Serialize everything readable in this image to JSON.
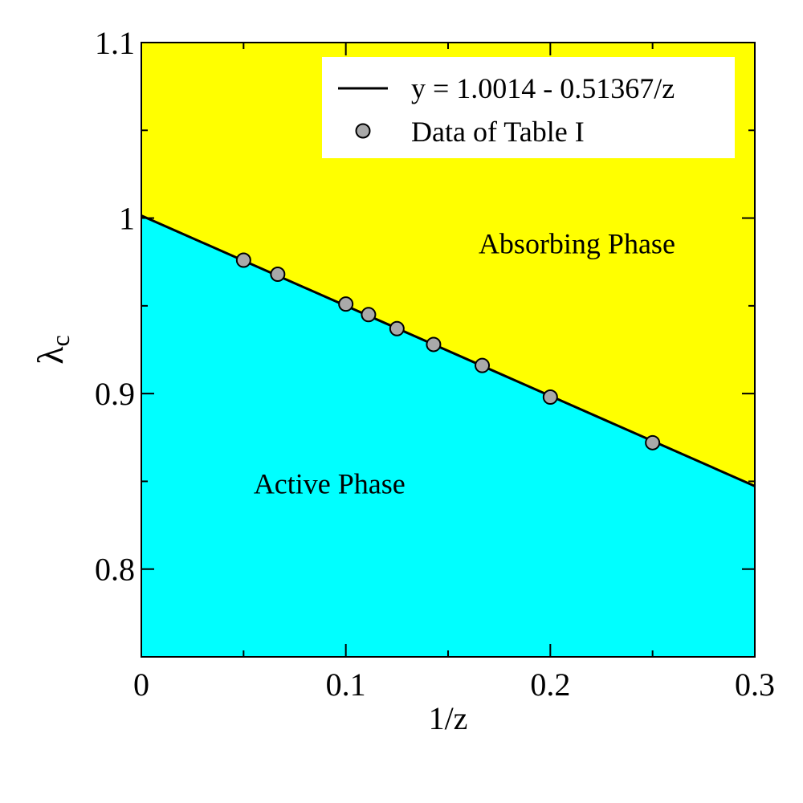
{
  "chart_data": {
    "type": "line",
    "xlabel": "1/z",
    "ylabel": "λ",
    "ylabel_subscript": "c",
    "xlim": [
      0,
      0.3
    ],
    "ylim": [
      0.75,
      1.1
    ],
    "x_ticks": [
      {
        "value": 0,
        "label": "0"
      },
      {
        "value": 0.1,
        "label": "0.1"
      },
      {
        "value": 0.2,
        "label": "0.2"
      },
      {
        "value": 0.3,
        "label": "0.3"
      }
    ],
    "y_ticks": [
      {
        "value": 0.8,
        "label": "0.8"
      },
      {
        "value": 0.9,
        "label": "0.9"
      },
      {
        "value": 1.0,
        "label": "1"
      },
      {
        "value": 1.1,
        "label": "1.1"
      }
    ],
    "x_minor_step": 0.05,
    "y_minor_step": 0.05,
    "series": [
      {
        "name": "y = 1.0014 - 0.51367/z",
        "kind": "line",
        "intercept": 1.0014,
        "slope": -0.51367,
        "color": "#000000"
      },
      {
        "name": "Data of Table I",
        "kind": "scatter",
        "color": "#a9a9a9",
        "points": [
          {
            "x": 0.05,
            "y": 0.976
          },
          {
            "x": 0.0667,
            "y": 0.968
          },
          {
            "x": 0.1,
            "y": 0.951
          },
          {
            "x": 0.1111,
            "y": 0.945
          },
          {
            "x": 0.125,
            "y": 0.937
          },
          {
            "x": 0.1429,
            "y": 0.928
          },
          {
            "x": 0.1667,
            "y": 0.916
          },
          {
            "x": 0.2,
            "y": 0.898
          },
          {
            "x": 0.25,
            "y": 0.872
          }
        ]
      }
    ],
    "regions": [
      {
        "label": "Absorbing Phase",
        "color": "#ffff00",
        "anchor": {
          "x": 0.213,
          "y": 0.98
        }
      },
      {
        "label": "Active Phase",
        "color": "#00ffff",
        "anchor": {
          "x": 0.092,
          "y": 0.843
        }
      }
    ],
    "legend": {
      "placement": "top-right",
      "background": "#ffffff"
    },
    "grid": false
  }
}
